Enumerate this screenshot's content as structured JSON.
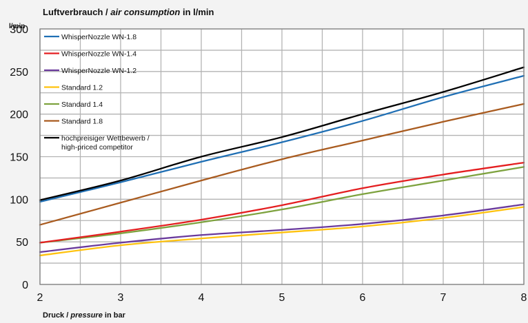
{
  "chart_data": {
    "type": "line",
    "title": {
      "part1": "Luftverbrauch",
      "sep": " / ",
      "part2": "air consumption",
      "part3": " in l/min"
    },
    "ylabel": "l/min",
    "xlabel": {
      "part1": "Druck",
      "sep": " / ",
      "part2": "pressure",
      "part3": " in bar"
    },
    "x": [
      2,
      3,
      4,
      5,
      6,
      7,
      8
    ],
    "xlim": [
      2,
      8
    ],
    "ylim": [
      0,
      300
    ],
    "x_ticks": [
      2,
      3,
      4,
      5,
      6,
      7,
      8
    ],
    "x_minor_step": 0.5,
    "y_ticks": [
      0,
      50,
      100,
      150,
      200,
      250,
      300
    ],
    "y_minor_step": 25,
    "grid": true,
    "legend_position": "top-left",
    "series": [
      {
        "name": "WhisperNozzle WN-1.8",
        "color": "#1f6fb4",
        "values": [
          97,
          120,
          144,
          167,
          192,
          220,
          245
        ]
      },
      {
        "name": "WhisperNozzle WN-1.4",
        "color": "#e41e20",
        "values": [
          49,
          62,
          76,
          93,
          113,
          129,
          143
        ]
      },
      {
        "name": "WhisperNozzle WN-1.2",
        "color": "#6a3a9c",
        "values": [
          38,
          49,
          58,
          64,
          71,
          81,
          94
        ]
      },
      {
        "name": "Standard 1.2",
        "color": "#ffc20e",
        "values": [
          34,
          46,
          54,
          61,
          68,
          78,
          91
        ]
      },
      {
        "name": "Standard 1.4",
        "color": "#7da23e",
        "values": [
          49,
          60,
          73,
          88,
          106,
          122,
          138
        ]
      },
      {
        "name": "Standard 1.8",
        "color": "#a95b1f",
        "values": [
          70,
          96,
          122,
          147,
          169,
          191,
          212
        ]
      },
      {
        "name": [
          "hochpreisiger Wettbewerb /",
          "high-priced competitor"
        ],
        "color": "#000000",
        "values": [
          99,
          122,
          150,
          173,
          200,
          226,
          255
        ]
      }
    ]
  }
}
